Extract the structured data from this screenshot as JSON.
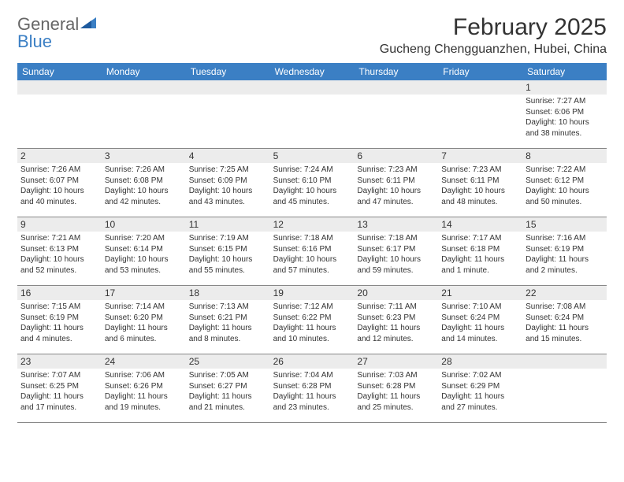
{
  "logo": {
    "text1": "General",
    "text2": "Blue"
  },
  "title": "February 2025",
  "location": "Gucheng Chengguanzhen, Hubei, China",
  "colors": {
    "header_bg": "#3b7fc4",
    "header_text": "#ffffff",
    "num_bar_bg": "#ececec",
    "text": "#333333",
    "border": "#888888"
  },
  "day_headers": [
    "Sunday",
    "Monday",
    "Tuesday",
    "Wednesday",
    "Thursday",
    "Friday",
    "Saturday"
  ],
  "weeks": [
    [
      null,
      null,
      null,
      null,
      null,
      null,
      {
        "num": "1",
        "sunrise": "Sunrise: 7:27 AM",
        "sunset": "Sunset: 6:06 PM",
        "daylight": "Daylight: 10 hours and 38 minutes."
      }
    ],
    [
      {
        "num": "2",
        "sunrise": "Sunrise: 7:26 AM",
        "sunset": "Sunset: 6:07 PM",
        "daylight": "Daylight: 10 hours and 40 minutes."
      },
      {
        "num": "3",
        "sunrise": "Sunrise: 7:26 AM",
        "sunset": "Sunset: 6:08 PM",
        "daylight": "Daylight: 10 hours and 42 minutes."
      },
      {
        "num": "4",
        "sunrise": "Sunrise: 7:25 AM",
        "sunset": "Sunset: 6:09 PM",
        "daylight": "Daylight: 10 hours and 43 minutes."
      },
      {
        "num": "5",
        "sunrise": "Sunrise: 7:24 AM",
        "sunset": "Sunset: 6:10 PM",
        "daylight": "Daylight: 10 hours and 45 minutes."
      },
      {
        "num": "6",
        "sunrise": "Sunrise: 7:23 AM",
        "sunset": "Sunset: 6:11 PM",
        "daylight": "Daylight: 10 hours and 47 minutes."
      },
      {
        "num": "7",
        "sunrise": "Sunrise: 7:23 AM",
        "sunset": "Sunset: 6:11 PM",
        "daylight": "Daylight: 10 hours and 48 minutes."
      },
      {
        "num": "8",
        "sunrise": "Sunrise: 7:22 AM",
        "sunset": "Sunset: 6:12 PM",
        "daylight": "Daylight: 10 hours and 50 minutes."
      }
    ],
    [
      {
        "num": "9",
        "sunrise": "Sunrise: 7:21 AM",
        "sunset": "Sunset: 6:13 PM",
        "daylight": "Daylight: 10 hours and 52 minutes."
      },
      {
        "num": "10",
        "sunrise": "Sunrise: 7:20 AM",
        "sunset": "Sunset: 6:14 PM",
        "daylight": "Daylight: 10 hours and 53 minutes."
      },
      {
        "num": "11",
        "sunrise": "Sunrise: 7:19 AM",
        "sunset": "Sunset: 6:15 PM",
        "daylight": "Daylight: 10 hours and 55 minutes."
      },
      {
        "num": "12",
        "sunrise": "Sunrise: 7:18 AM",
        "sunset": "Sunset: 6:16 PM",
        "daylight": "Daylight: 10 hours and 57 minutes."
      },
      {
        "num": "13",
        "sunrise": "Sunrise: 7:18 AM",
        "sunset": "Sunset: 6:17 PM",
        "daylight": "Daylight: 10 hours and 59 minutes."
      },
      {
        "num": "14",
        "sunrise": "Sunrise: 7:17 AM",
        "sunset": "Sunset: 6:18 PM",
        "daylight": "Daylight: 11 hours and 1 minute."
      },
      {
        "num": "15",
        "sunrise": "Sunrise: 7:16 AM",
        "sunset": "Sunset: 6:19 PM",
        "daylight": "Daylight: 11 hours and 2 minutes."
      }
    ],
    [
      {
        "num": "16",
        "sunrise": "Sunrise: 7:15 AM",
        "sunset": "Sunset: 6:19 PM",
        "daylight": "Daylight: 11 hours and 4 minutes."
      },
      {
        "num": "17",
        "sunrise": "Sunrise: 7:14 AM",
        "sunset": "Sunset: 6:20 PM",
        "daylight": "Daylight: 11 hours and 6 minutes."
      },
      {
        "num": "18",
        "sunrise": "Sunrise: 7:13 AM",
        "sunset": "Sunset: 6:21 PM",
        "daylight": "Daylight: 11 hours and 8 minutes."
      },
      {
        "num": "19",
        "sunrise": "Sunrise: 7:12 AM",
        "sunset": "Sunset: 6:22 PM",
        "daylight": "Daylight: 11 hours and 10 minutes."
      },
      {
        "num": "20",
        "sunrise": "Sunrise: 7:11 AM",
        "sunset": "Sunset: 6:23 PM",
        "daylight": "Daylight: 11 hours and 12 minutes."
      },
      {
        "num": "21",
        "sunrise": "Sunrise: 7:10 AM",
        "sunset": "Sunset: 6:24 PM",
        "daylight": "Daylight: 11 hours and 14 minutes."
      },
      {
        "num": "22",
        "sunrise": "Sunrise: 7:08 AM",
        "sunset": "Sunset: 6:24 PM",
        "daylight": "Daylight: 11 hours and 15 minutes."
      }
    ],
    [
      {
        "num": "23",
        "sunrise": "Sunrise: 7:07 AM",
        "sunset": "Sunset: 6:25 PM",
        "daylight": "Daylight: 11 hours and 17 minutes."
      },
      {
        "num": "24",
        "sunrise": "Sunrise: 7:06 AM",
        "sunset": "Sunset: 6:26 PM",
        "daylight": "Daylight: 11 hours and 19 minutes."
      },
      {
        "num": "25",
        "sunrise": "Sunrise: 7:05 AM",
        "sunset": "Sunset: 6:27 PM",
        "daylight": "Daylight: 11 hours and 21 minutes."
      },
      {
        "num": "26",
        "sunrise": "Sunrise: 7:04 AM",
        "sunset": "Sunset: 6:28 PM",
        "daylight": "Daylight: 11 hours and 23 minutes."
      },
      {
        "num": "27",
        "sunrise": "Sunrise: 7:03 AM",
        "sunset": "Sunset: 6:28 PM",
        "daylight": "Daylight: 11 hours and 25 minutes."
      },
      {
        "num": "28",
        "sunrise": "Sunrise: 7:02 AM",
        "sunset": "Sunset: 6:29 PM",
        "daylight": "Daylight: 11 hours and 27 minutes."
      },
      null
    ]
  ]
}
